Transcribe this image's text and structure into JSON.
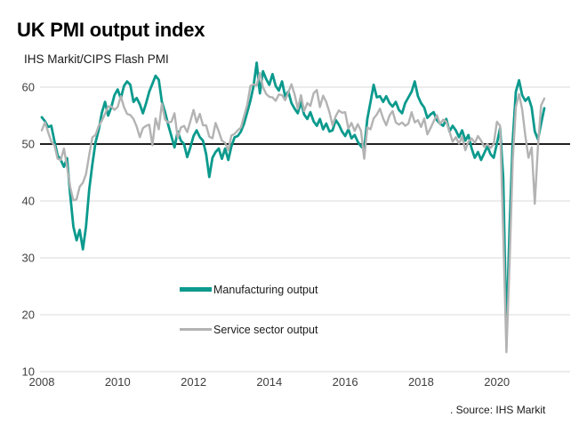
{
  "title": "UK PMI output index",
  "subtitle": "IHS Markit/CIPS Flash PMI",
  "source": ". Source: IHS Markit",
  "colors": {
    "manufacturing": "#0b9a8d",
    "services": "#b3b3b3",
    "grid": "#d9d9d9",
    "baseline": "#000000",
    "axis_text": "#3f3f3f"
  },
  "chart_data": {
    "type": "line",
    "title": "UK PMI output index",
    "subtitle": "IHS Markit/CIPS Flash PMI",
    "frequency": "monthly",
    "x_start": {
      "year": 2008,
      "month": 1
    },
    "x_end": {
      "year": 2021,
      "month": 4
    },
    "x_tick_years": [
      2008,
      2010,
      2012,
      2014,
      2016,
      2018,
      2020
    ],
    "yticks": [
      10,
      20,
      30,
      40,
      50,
      60
    ],
    "ylim": [
      10,
      65
    ],
    "baseline": 50,
    "grid": true,
    "legend_position": "inside-bottom-center",
    "series": [
      {
        "name": "Manufacturing output",
        "color": "#0b9a8d",
        "values": [
          54.7,
          54.0,
          53.0,
          53.2,
          50.5,
          48.0,
          47.2,
          46.0,
          47.5,
          41.0,
          35.5,
          33.1,
          34.9,
          31.5,
          35.5,
          42.0,
          46.5,
          50.3,
          52.5,
          55.5,
          57.4,
          55.0,
          56.5,
          58.6,
          59.6,
          58.0,
          60.2,
          61.0,
          60.4,
          57.4,
          58.1,
          57.0,
          55.4,
          57.2,
          59.2,
          60.6,
          62.0,
          61.3,
          57.4,
          55.6,
          53.4,
          51.4,
          49.4,
          52.2,
          50.6,
          50.0,
          47.7,
          49.4,
          51.4,
          52.4,
          51.2,
          50.6,
          48.2,
          44.2,
          47.6,
          48.6,
          49.2,
          47.4,
          49.2,
          47.2,
          49.6,
          51.2,
          51.4,
          52.2,
          53.6,
          55.6,
          57.6,
          60.2,
          64.3,
          58.9,
          62.8,
          61.4,
          60.4,
          62.3,
          60.2,
          59.4,
          61.0,
          58.4,
          59.2,
          57.2,
          56.2,
          55.4,
          57.4,
          55.2,
          54.4,
          55.6,
          54.0,
          53.2,
          54.4,
          52.6,
          53.6,
          52.2,
          52.4,
          54.2,
          53.4,
          52.2,
          51.4,
          52.6,
          51.0,
          51.6,
          50.4,
          49.6,
          49.1,
          54.4,
          57.4,
          60.4,
          58.2,
          58.4,
          57.4,
          58.4,
          57.2,
          56.6,
          57.4,
          56.0,
          55.4,
          57.2,
          58.2,
          59.2,
          61.0,
          58.4,
          57.2,
          56.4,
          54.6,
          55.2,
          55.6,
          54.2,
          53.6,
          53.2,
          54.4,
          52.2,
          53.2,
          52.4,
          51.2,
          52.4,
          50.6,
          51.6,
          49.2,
          47.6,
          48.6,
          47.2,
          48.4,
          49.6,
          48.2,
          47.6,
          50.1,
          52.8,
          44.0,
          16.3,
          35.0,
          50.6,
          59.2,
          61.2,
          58.6,
          57.6,
          58.2,
          56.4,
          52.2,
          50.8,
          53.6,
          56.3
        ]
      },
      {
        "name": "Service sector output",
        "color": "#b3b3b3",
        "values": [
          52.4,
          53.8,
          52.1,
          50.4,
          49.8,
          47.4,
          47.2,
          49.2,
          46.0,
          42.4,
          40.1,
          40.3,
          42.5,
          43.2,
          44.7,
          48.1,
          51.2,
          51.6,
          53.2,
          54.1,
          55.3,
          56.6,
          56.6,
          56.0,
          56.5,
          58.4,
          56.5,
          55.3,
          55.1,
          54.4,
          53.1,
          51.2,
          52.8,
          53.2,
          53.4,
          49.8,
          54.5,
          52.6,
          57.1,
          54.3,
          53.8,
          53.9,
          55.4,
          51.1,
          52.9,
          53.2,
          52.1,
          54.0,
          56.0,
          53.8,
          55.3,
          53.3,
          53.3,
          51.3,
          51.0,
          53.7,
          52.2,
          50.6,
          50.2,
          48.9,
          51.5,
          51.8,
          52.4,
          52.9,
          54.9,
          56.9,
          60.2,
          60.5,
          60.3,
          62.5,
          60.0,
          58.8,
          58.3,
          58.2,
          57.6,
          58.7,
          58.6,
          57.7,
          59.1,
          60.5,
          58.7,
          56.2,
          58.6,
          55.8,
          57.2,
          56.7,
          58.9,
          59.5,
          56.5,
          58.5,
          57.4,
          55.6,
          53.3,
          54.9,
          55.9,
          55.5,
          55.6,
          52.7,
          53.7,
          52.3,
          53.5,
          52.3,
          47.4,
          52.9,
          52.6,
          54.5,
          55.2,
          56.2,
          54.5,
          53.3,
          55.0,
          55.8,
          53.8,
          53.4,
          53.8,
          53.2,
          53.6,
          55.6,
          53.8,
          54.2,
          53.0,
          54.5,
          51.7,
          52.8,
          54.0,
          55.1,
          53.5,
          54.3,
          53.9,
          52.2,
          50.4,
          51.2,
          50.1,
          51.3,
          48.9,
          50.4,
          51.0,
          50.2,
          51.4,
          50.6,
          49.5,
          50.0,
          49.3,
          50.0,
          53.9,
          53.2,
          34.5,
          13.4,
          29.0,
          47.1,
          56.5,
          58.8,
          56.1,
          51.4,
          47.6,
          49.4,
          39.5,
          49.7,
          56.8,
          58.0
        ]
      }
    ]
  }
}
